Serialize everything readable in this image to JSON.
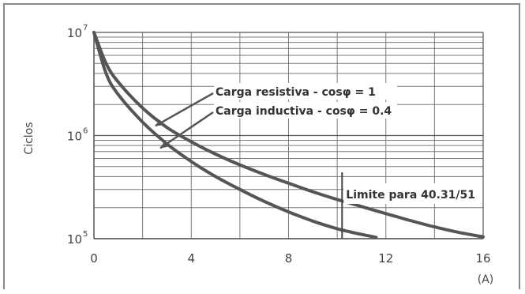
{
  "chart_data": {
    "type": "line",
    "ylabel": "Ciclos",
    "xlabel": "(A)",
    "yscale": "log",
    "grid": true,
    "xlim": [
      0,
      16
    ],
    "ylim": [
      100000,
      10000000
    ],
    "xticks": [
      0,
      4,
      8,
      12,
      16
    ],
    "yticks": [
      {
        "base": "10",
        "exp": "5",
        "value": 100000
      },
      {
        "base": "10",
        "exp": "6",
        "value": 1000000
      },
      {
        "base": "10",
        "exp": "7",
        "value": 10000000
      }
    ],
    "series": [
      {
        "name": "Carga resistiva - cosφ = 1",
        "color": "#555555",
        "x": [
          0,
          0.5,
          1,
          2,
          3,
          4,
          5,
          6,
          7,
          8,
          9,
          10,
          11,
          12,
          13,
          14,
          15,
          16
        ],
        "y": [
          10000000,
          5000000,
          3300000,
          1850000,
          1200000,
          870000,
          660000,
          520000,
          420000,
          345000,
          285000,
          240000,
          205000,
          175000,
          150000,
          130000,
          115000,
          104000
        ]
      },
      {
        "name": "Carga inductiva - cosφ = 0.4",
        "color": "#555555",
        "x": [
          0,
          0.5,
          1,
          2,
          3,
          4,
          5,
          6,
          7,
          8,
          9,
          10,
          11,
          11.6
        ],
        "y": [
          10000000,
          4000000,
          2500000,
          1350000,
          830000,
          560000,
          400000,
          300000,
          230000,
          182000,
          148000,
          125000,
          110000,
          103000
        ]
      }
    ],
    "annotations": [
      {
        "text": "Carga resistiva - cosφ = 1",
        "target_x": 2.4,
        "target_y": 1200000
      },
      {
        "text": "Carga inductiva - cosφ = 0.4",
        "target_x": 2.6,
        "target_y": 730000
      },
      {
        "text": "Limite para 40.31/51",
        "line_x": 10.2
      }
    ]
  }
}
